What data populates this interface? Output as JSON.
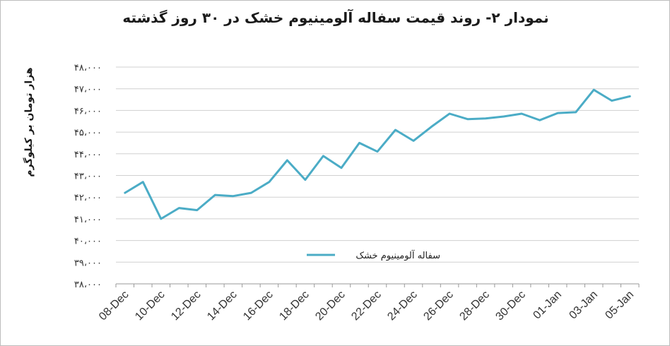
{
  "chart_data": {
    "type": "line",
    "title": "نمودار ۲- روند قیمت سفاله آلومینیوم خشک در ۳۰ روز گذشته",
    "ylabel": "هزار تومان بر کیلوگرم",
    "ylim": [
      38000,
      48000
    ],
    "y_ticks": [
      38000,
      39000,
      40000,
      41000,
      42000,
      43000,
      44000,
      45000,
      46000,
      47000,
      48000
    ],
    "y_tick_labels": [
      "۳۸،۰۰۰",
      "۳۹،۰۰۰",
      "۴۰،۰۰۰",
      "۴۱،۰۰۰",
      "۴۲،۰۰۰",
      "۴۳،۰۰۰",
      "۴۴،۰۰۰",
      "۴۵،۰۰۰",
      "۴۶،۰۰۰",
      "۴۷،۰۰۰",
      "۴۸،۰۰۰"
    ],
    "x": [
      "08-Dec",
      "09-Dec",
      "10-Dec",
      "11-Dec",
      "12-Dec",
      "13-Dec",
      "14-Dec",
      "15-Dec",
      "16-Dec",
      "17-Dec",
      "18-Dec",
      "19-Dec",
      "20-Dec",
      "21-Dec",
      "22-Dec",
      "23-Dec",
      "24-Dec",
      "25-Dec",
      "26-Dec",
      "27-Dec",
      "28-Dec",
      "29-Dec",
      "30-Dec",
      "31-Dec",
      "01-Jan",
      "02-Jan",
      "03-Jan",
      "04-Jan",
      "05-Jan"
    ],
    "x_tick_labels": [
      "08-Dec",
      "10-Dec",
      "12-Dec",
      "14-Dec",
      "16-Dec",
      "18-Dec",
      "20-Dec",
      "22-Dec",
      "24-Dec",
      "26-Dec",
      "28-Dec",
      "30-Dec",
      "01-Jan",
      "03-Jan",
      "05-Jan"
    ],
    "grid": "horizontal",
    "legend_position": "center",
    "series": [
      {
        "name": "سفاله آلومینیوم خشک",
        "color": "#4bacc6",
        "values": [
          42200,
          42700,
          41000,
          41500,
          41400,
          42100,
          42050,
          42200,
          42700,
          43700,
          42800,
          43900,
          43350,
          44500,
          44100,
          45100,
          44600,
          45250,
          45850,
          45600,
          45630,
          45720,
          45850,
          45550,
          45880,
          45920,
          46950,
          46450,
          46650
        ]
      }
    ]
  }
}
